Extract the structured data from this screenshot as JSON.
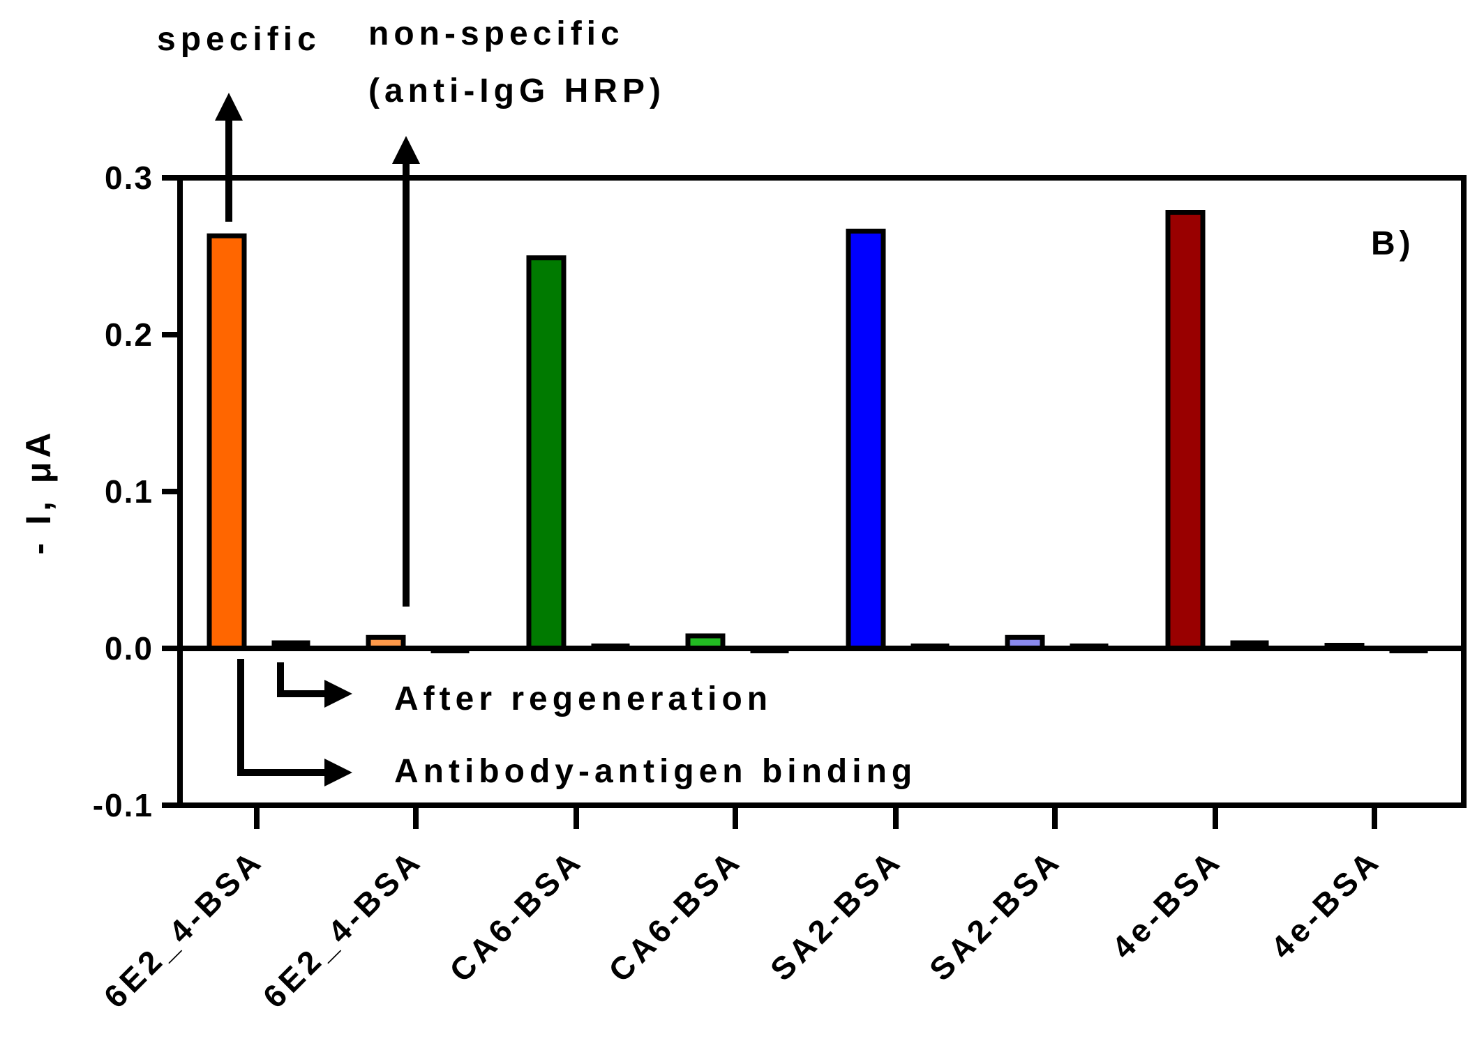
{
  "chart_data": {
    "type": "bar",
    "panel_label": "B)",
    "ylabel": "- I, μA",
    "xlabel": "",
    "ylim": [
      -0.1,
      0.3
    ],
    "yticks": [
      -0.1,
      0.0,
      0.1,
      0.2,
      0.3
    ],
    "ytick_labels": [
      "-0.1",
      "0.0",
      "0.1",
      "0.2",
      "0.3"
    ],
    "grid": false,
    "legend": "none",
    "categories": [
      "6E2_4-BSA",
      "6E2_4-BSA",
      "CA6-BSA",
      "CA6-BSA",
      "SA2-BSA",
      "SA2-BSA",
      "4e-BSA",
      "4e-BSA"
    ],
    "series": [
      {
        "name": "Antibody-antigen binding",
        "values": [
          0.263,
          0.007,
          0.249,
          0.008,
          0.266,
          0.007,
          0.278,
          0.002
        ],
        "colors": [
          "#ff6600",
          "#ff9a4a",
          "#007a00",
          "#22bb22",
          "#0000ff",
          "#8a8aee",
          "#990000",
          "#c04040"
        ]
      },
      {
        "name": "After regeneration",
        "values": [
          0.004,
          -0.002,
          0.002,
          -0.002,
          0.002,
          0.002,
          0.004,
          -0.002
        ],
        "colors": [
          "#000000",
          "#000000",
          "#000000",
          "#000000",
          "#000000",
          "#000000",
          "#000000",
          "#000000"
        ]
      }
    ],
    "annotations": {
      "specific": "specific",
      "nonspecific_line1": "non-specific",
      "nonspecific_line2": "(anti-IgG HRP)",
      "after_regeneration": "After regeneration",
      "binding": "Antibody-antigen binding"
    }
  }
}
